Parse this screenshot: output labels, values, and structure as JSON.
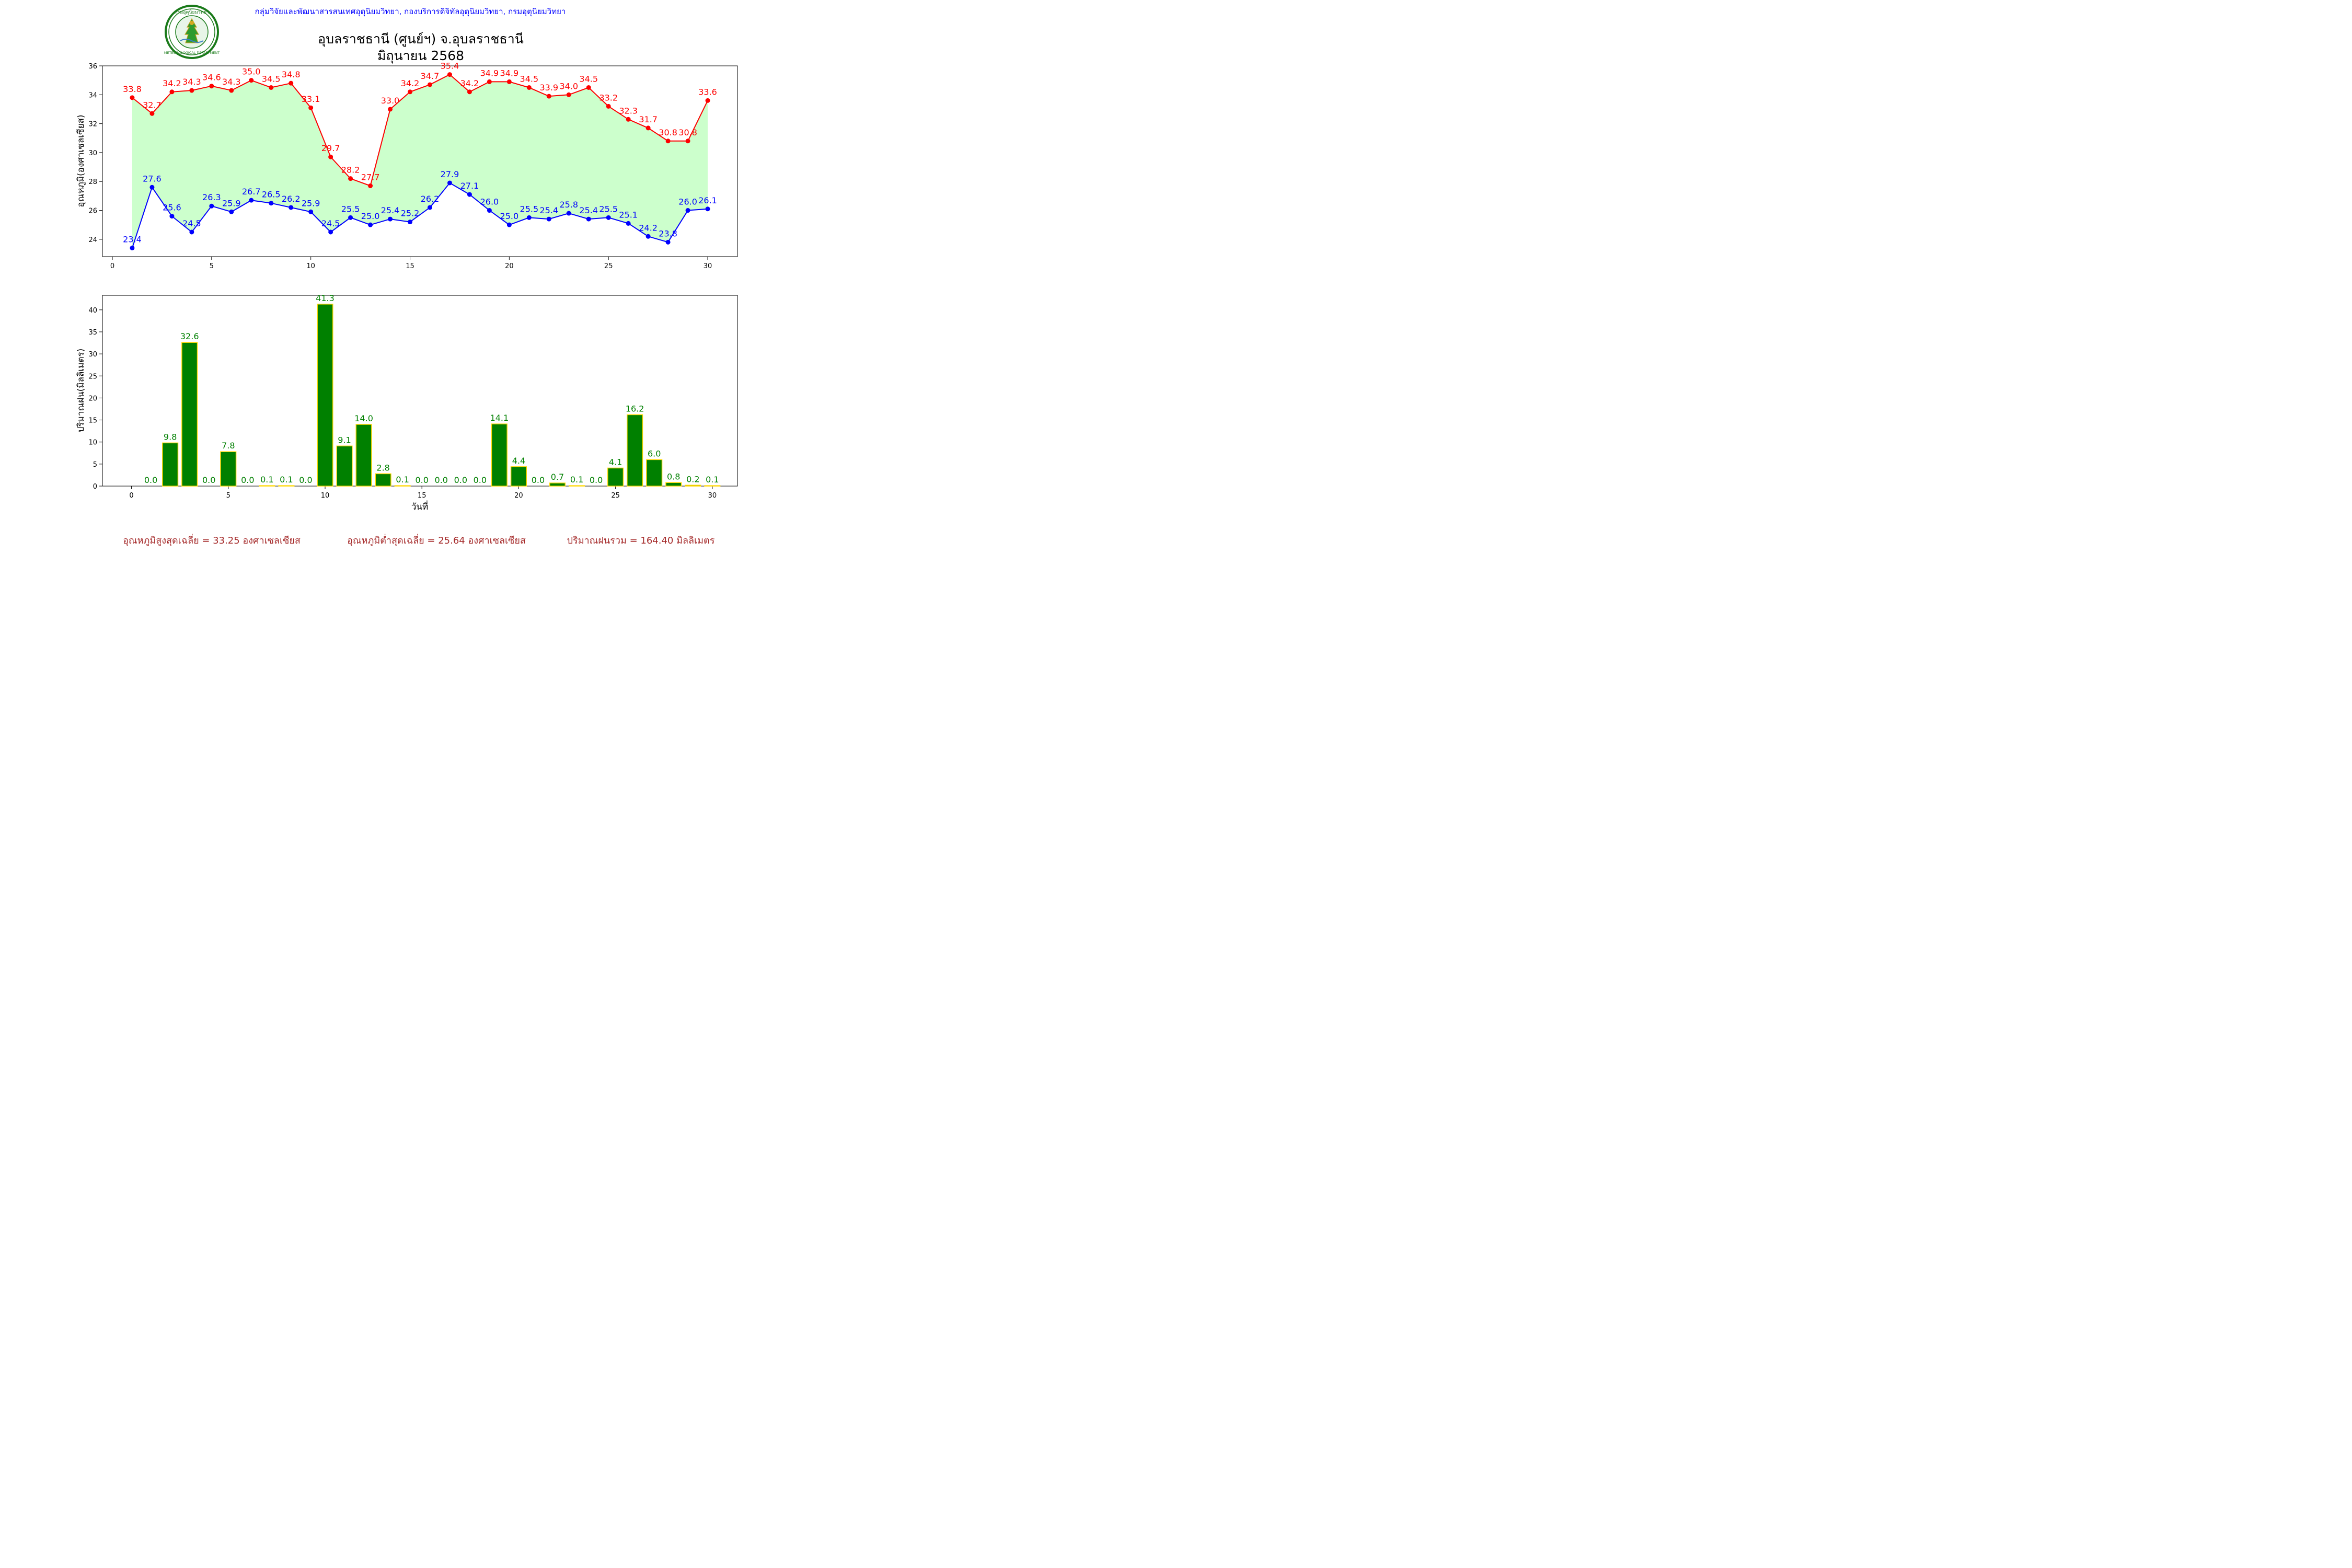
{
  "header": {
    "agency": "กลุ่มวิจัยและพัฒนาสารสนเทศอุตุนิยมวิทยา, กองบริการดิจิทัลอุตุนิยมวิทยา, กรมอุตุนิยมวิทยา",
    "station": "อุบลราชธานี (ศูนย์ฯ) จ.อุบลราชธานี",
    "period": "มิถุนายน 2568",
    "logo_top_text": "กรมอุตุนิยมวิทยา",
    "logo_bottom_text": "METEOROLOGICAL DEPARTMENT"
  },
  "colors": {
    "agency_text": "#0000ff",
    "max_series": "#ff0000",
    "min_series": "#0000ff",
    "range_fill": "#ccffcc",
    "bar_fill": "#008000",
    "bar_edge": "#ffd700",
    "bar_label": "#008000",
    "footer_text": "#a52a2a"
  },
  "chart_data": [
    {
      "type": "line",
      "ylabel": "อุณหภูมิ(องศาเซลเซียส)",
      "xlabel": "",
      "xlim": [
        -0.5,
        31.5
      ],
      "ylim": [
        22.8,
        36
      ],
      "xticks": [
        0,
        5,
        10,
        15,
        20,
        25,
        30
      ],
      "yticks": [
        24,
        26,
        28,
        30,
        32,
        34,
        36
      ],
      "x": [
        1,
        2,
        3,
        4,
        5,
        6,
        7,
        8,
        9,
        10,
        11,
        12,
        13,
        14,
        15,
        16,
        17,
        18,
        19,
        20,
        21,
        22,
        23,
        24,
        25,
        26,
        27,
        28,
        29,
        30
      ],
      "fill_between": "min-max",
      "series": [
        {
          "key": "max",
          "values": [
            33.8,
            32.7,
            34.2,
            34.3,
            34.6,
            34.3,
            35.0,
            34.5,
            34.8,
            33.1,
            29.7,
            28.2,
            27.7,
            33.0,
            34.2,
            34.7,
            35.4,
            34.2,
            34.9,
            34.9,
            34.5,
            33.9,
            34.0,
            34.5,
            33.2,
            32.3,
            31.7,
            30.8,
            30.8,
            33.6
          ]
        },
        {
          "key": "min",
          "values": [
            23.4,
            27.6,
            25.6,
            24.5,
            26.3,
            25.9,
            26.7,
            26.5,
            26.2,
            25.9,
            24.5,
            25.5,
            25.0,
            25.4,
            25.2,
            26.2,
            27.9,
            27.1,
            26.0,
            25.0,
            25.5,
            25.4,
            25.8,
            25.4,
            25.5,
            25.1,
            24.2,
            23.8,
            26.0,
            26.1
          ]
        }
      ]
    },
    {
      "type": "bar",
      "ylabel": "ปริมาณฝน(มิลลิเมตร)",
      "xlabel": "วันที่",
      "xlim": [
        -1.5,
        31.3
      ],
      "ylim": [
        0,
        43.3
      ],
      "xticks": [
        0,
        5,
        10,
        15,
        20,
        25,
        30
      ],
      "yticks": [
        0,
        5,
        10,
        15,
        20,
        25,
        30,
        35,
        40
      ],
      "x": [
        1,
        2,
        3,
        4,
        5,
        6,
        7,
        8,
        9,
        10,
        11,
        12,
        13,
        14,
        15,
        16,
        17,
        18,
        19,
        20,
        21,
        22,
        23,
        24,
        25,
        26,
        27,
        28,
        29,
        30
      ],
      "values": [
        0.0,
        9.8,
        32.6,
        0.0,
        7.8,
        0.0,
        0.1,
        0.1,
        0.0,
        41.3,
        9.1,
        14.0,
        2.8,
        0.1,
        0.0,
        0.0,
        0.0,
        0.0,
        14.1,
        4.4,
        0.0,
        0.7,
        0.1,
        0.0,
        4.1,
        16.2,
        6.0,
        0.8,
        0.2,
        0.1
      ]
    }
  ],
  "footer": {
    "avg_max": "อุณหภูมิสูงสุดเฉลี่ย = 33.25 องศาเซลเซียส",
    "avg_min": "อุณหภูมิต่ำสุดเฉลี่ย = 25.64 องศาเซลเซียส",
    "total_rain": "ปริมาณฝนรวม = 164.40 มิลลิเมตร"
  }
}
